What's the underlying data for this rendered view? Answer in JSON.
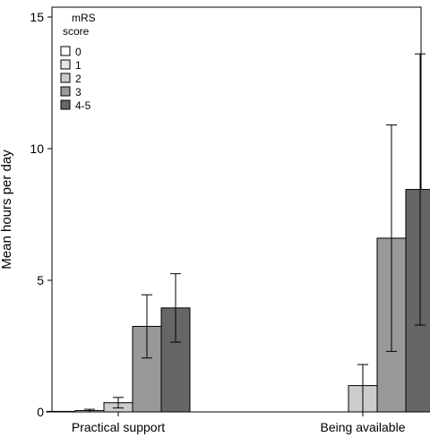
{
  "chart_data": {
    "type": "bar",
    "categories": [
      "Practical support",
      "Being available"
    ],
    "ylabel": "Mean hours per day",
    "xlabel": "",
    "ylim": [
      0,
      15
    ],
    "yticks": [
      0,
      5,
      10,
      15
    ],
    "grid": false,
    "legend": {
      "title_line1": "mRS",
      "title_line2": "score",
      "placement": "top-left"
    },
    "series": [
      {
        "name": "0",
        "color": "#ffffff",
        "values": [
          0.02,
          null
        ],
        "err_low": [
          null,
          null
        ],
        "err_high": [
          null,
          null
        ]
      },
      {
        "name": "1",
        "color": "#e6e6e6",
        "values": [
          0.05,
          null
        ],
        "err_low": [
          0.0,
          null
        ],
        "err_high": [
          0.1,
          null
        ]
      },
      {
        "name": "2",
        "color": "#cccccc",
        "values": [
          0.35,
          1.0
        ],
        "err_low": [
          0.15,
          0.0
        ],
        "err_high": [
          0.55,
          1.8
        ]
      },
      {
        "name": "3",
        "color": "#999999",
        "values": [
          3.25,
          6.6
        ],
        "err_low": [
          2.05,
          2.3
        ],
        "err_high": [
          4.45,
          10.9
        ]
      },
      {
        "name": "4-5",
        "color": "#666666",
        "values": [
          3.95,
          8.45
        ],
        "err_low": [
          2.65,
          3.3
        ],
        "err_high": [
          5.25,
          13.6
        ]
      }
    ]
  }
}
